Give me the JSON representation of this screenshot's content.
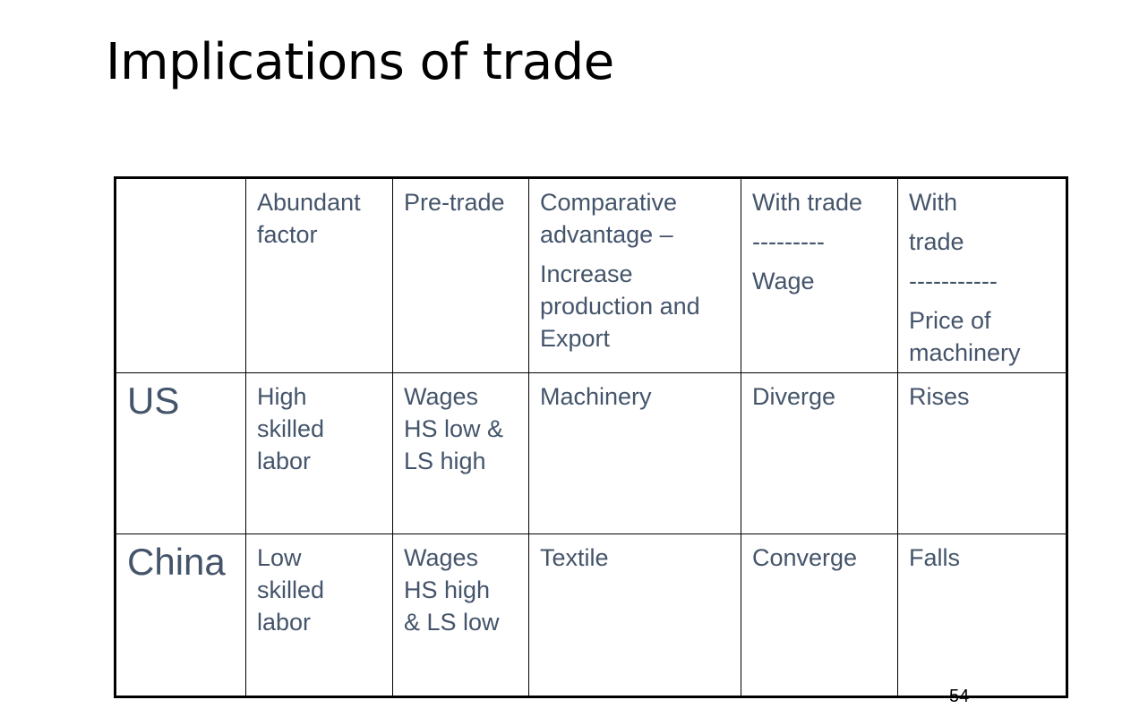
{
  "slide": {
    "title": "Implications of trade",
    "page_number": "54"
  },
  "table": {
    "header": {
      "corner": "",
      "abundant_factor": [
        "Abundant",
        "factor"
      ],
      "pre_trade": [
        "Pre-trade"
      ],
      "comparative_advantage": [
        "Comparative",
        "advantage –",
        "Increase",
        "production and",
        "Export"
      ],
      "with_trade_wage": [
        "With trade",
        "---------",
        "Wage"
      ],
      "with_trade_price": [
        "With",
        "trade",
        "-----------",
        "Price of",
        "machinery"
      ]
    },
    "rows": [
      {
        "country": "US",
        "abundant_factor": [
          "High",
          "skilled",
          "labor"
        ],
        "pre_trade": [
          "Wages",
          "HS low &",
          "LS high"
        ],
        "comparative_advantage": "Machinery",
        "wage": "Diverge",
        "price": "Rises"
      },
      {
        "country": "China",
        "abundant_factor": [
          "Low",
          "skilled",
          "labor"
        ],
        "pre_trade": [
          "Wages",
          "HS high",
          "& LS low"
        ],
        "comparative_advantage": "Textile",
        "wage": "Converge",
        "price": "Falls"
      }
    ]
  }
}
